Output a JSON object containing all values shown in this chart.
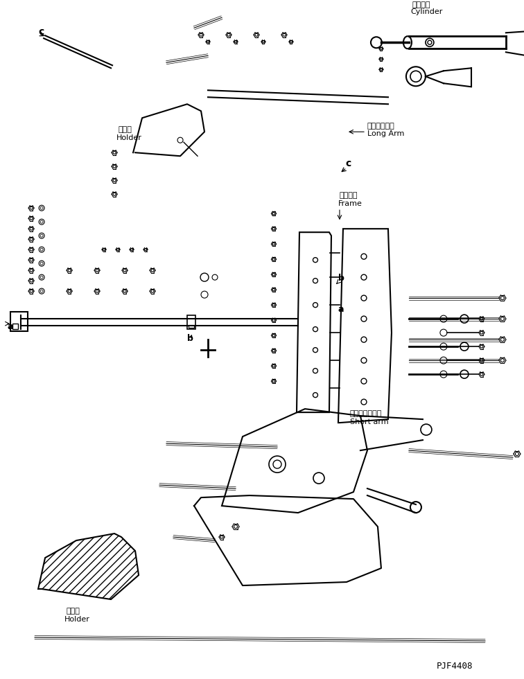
{
  "title": "",
  "bg_color": "#ffffff",
  "line_color": "#000000",
  "fig_width": 7.56,
  "fig_height": 9.8,
  "dpi": 100,
  "labels": {
    "cylinder_jp": "シリンダ",
    "cylinder_en": "Cylinder",
    "longarm_jp": "ロングアーム",
    "longarm_en": "Long Arm",
    "frame_jp": "フレーム",
    "frame_en": "Frame",
    "shortarm_jp": "ショートアーム",
    "shortarm_en": "Short arm",
    "holder_jp1": "ホルダ",
    "holder_en1": "Holder",
    "holder_jp2": "ホルダ",
    "holder_en2": "Holder",
    "part_id": "PJF4408",
    "label_a1": "a",
    "label_a2": "a",
    "label_b1": "b",
    "label_b2": "b",
    "label_c1": "c",
    "label_c2": "c"
  }
}
